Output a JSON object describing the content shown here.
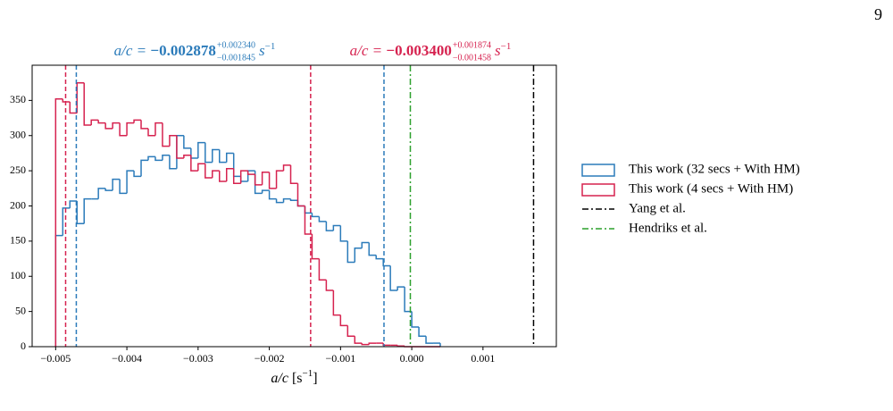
{
  "page_number": "9",
  "chart_data": {
    "type": "histogram",
    "xlabel": {
      "main": "a/c",
      "open": "[s",
      "exp": "−1",
      "close": "]"
    },
    "annotations": [
      {
        "lhs": "a/c = ",
        "value": "−0.002878",
        "upper": "+0.002340",
        "lower": "−0.001845",
        "unit": "s",
        "exp": "−1",
        "color": "#2b7bba"
      },
      {
        "lhs": "a/c = ",
        "value": "−0.003400",
        "upper": "+0.001874",
        "lower": "−0.001458",
        "unit": "s",
        "exp": "−1",
        "color": "#d6224f"
      }
    ],
    "bins": [
      -0.005,
      -0.0049,
      -0.0048,
      -0.0047,
      -0.0046,
      -0.0045,
      -0.0044,
      -0.0043,
      -0.0042,
      -0.0041,
      -0.004,
      -0.0039,
      -0.0038,
      -0.0037,
      -0.0036,
      -0.0035,
      -0.0034,
      -0.0033,
      -0.0032,
      -0.0031,
      -0.003,
      -0.0029,
      -0.0028,
      -0.0027,
      -0.0026,
      -0.0025,
      -0.0024,
      -0.0023,
      -0.0022,
      -0.0021,
      -0.002,
      -0.0019,
      -0.0018,
      -0.0017,
      -0.0016,
      -0.0015,
      -0.0014,
      -0.0013,
      -0.0012,
      -0.0011,
      -0.001,
      -0.0009,
      -0.0008,
      -0.0007,
      -0.0006,
      -0.0005,
      -0.0004,
      -0.0003,
      -0.0002,
      -0.0001,
      0,
      0.0001,
      0.0002,
      0.0003,
      0.0004
    ],
    "series": [
      {
        "name": "This work (32 secs + With HM)",
        "color": "#2b7bba",
        "values": [
          158,
          197,
          207,
          175,
          210,
          210,
          225,
          222,
          238,
          218,
          250,
          242,
          265,
          270,
          265,
          272,
          253,
          300,
          282,
          268,
          290,
          262,
          280,
          262,
          275,
          242,
          235,
          250,
          218,
          222,
          210,
          205,
          210,
          208,
          200,
          190,
          185,
          178,
          165,
          172,
          150,
          120,
          140,
          148,
          130,
          125,
          115,
          80,
          85,
          50,
          28,
          15,
          5,
          5
        ]
      },
      {
        "name": "This work (4 secs + With HM)",
        "color": "#d6224f",
        "values": [
          352,
          348,
          332,
          375,
          315,
          322,
          318,
          310,
          318,
          300,
          318,
          322,
          310,
          300,
          318,
          285,
          300,
          268,
          272,
          250,
          260,
          240,
          250,
          235,
          253,
          232,
          250,
          245,
          230,
          248,
          225,
          250,
          258,
          232,
          200,
          160,
          125,
          95,
          80,
          45,
          30,
          15,
          5,
          3,
          5,
          5,
          2,
          2,
          1,
          0,
          0,
          0,
          0,
          0
        ]
      }
    ],
    "markers": [
      {
        "x": -0.00486,
        "color": "#d6224f",
        "style": "dashed"
      },
      {
        "x": -0.00142,
        "color": "#d6224f",
        "style": "dashed"
      },
      {
        "x": -0.00471,
        "color": "#2b7bba",
        "style": "dashed"
      },
      {
        "x": -0.00039,
        "color": "#2b7bba",
        "style": "dashed"
      }
    ],
    "reference_lines": [
      {
        "name": "Yang et al.",
        "x": 0.00171,
        "color": "#000000",
        "style": "dashdot"
      },
      {
        "name": "Hendriks et al.",
        "x": -2e-05,
        "color": "#2ca02c",
        "style": "dashdot"
      }
    ],
    "xlim": [
      -0.00533,
      0.00203
    ],
    "ylim": [
      0,
      400
    ],
    "xticks": [
      {
        "value": -0.005,
        "label": "−0.005"
      },
      {
        "value": -0.004,
        "label": "−0.004"
      },
      {
        "value": -0.003,
        "label": "−0.003"
      },
      {
        "value": -0.002,
        "label": "−0.002"
      },
      {
        "value": -0.001,
        "label": "−0.001"
      },
      {
        "value": 0,
        "label": "0.000"
      },
      {
        "value": 0.001,
        "label": "0.001"
      }
    ],
    "yticks": [
      0,
      50,
      100,
      150,
      200,
      250,
      300,
      350
    ],
    "legend": "outside-right"
  }
}
